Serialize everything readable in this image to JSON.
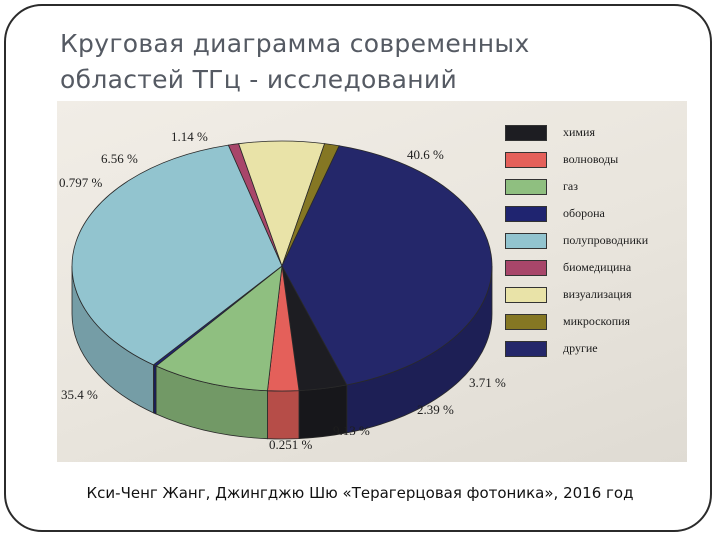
{
  "slide": {
    "title_line1": "Круговая диаграмма современных",
    "title_line2": "областей ТГц - исследований",
    "caption": "Кси-Ченг Жанг, Джингджю Шю «Терагерцовая фотоника», 2016 год"
  },
  "chart_data": {
    "type": "pie",
    "title": "",
    "style": "3d",
    "legend_position": "right",
    "series": [
      {
        "name": "химия",
        "value": 3.71,
        "label": "3.71 %",
        "color": "#1d1d22"
      },
      {
        "name": "волноводы",
        "value": 2.39,
        "label": "2.39 %",
        "color": "#e4605a"
      },
      {
        "name": "газ",
        "value": 9.13,
        "label": "9.13 %",
        "color": "#8fbf80"
      },
      {
        "name": "оборона",
        "value": 0.251,
        "label": "0.251 %",
        "color": "#1f2470"
      },
      {
        "name": "полупроводники",
        "value": 35.4,
        "label": "35.4 %",
        "color": "#92c4cf"
      },
      {
        "name": "биомедицина",
        "value": 0.797,
        "label": "0.797 %",
        "color": "#a8466a"
      },
      {
        "name": "визуализация",
        "value": 6.56,
        "label": "6.56 %",
        "color": "#e9e3a8"
      },
      {
        "name": "микроскопия",
        "value": 1.14,
        "label": "1.14 %",
        "color": "#857723"
      },
      {
        "name": "другие",
        "value": 40.6,
        "label": "40.6 %",
        "color": "#24276a"
      }
    ]
  }
}
